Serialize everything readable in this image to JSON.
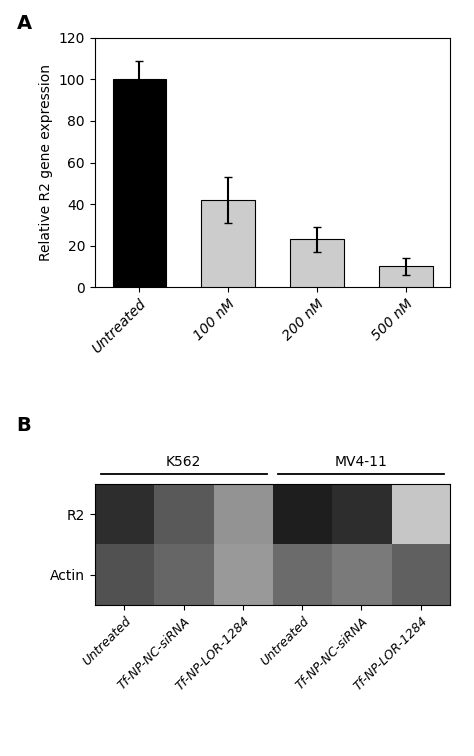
{
  "chart_data": [
    {
      "type": "bar",
      "title": "A",
      "categories": [
        "Untreated",
        "100 nM",
        "200 nM",
        "500 nM"
      ],
      "values": [
        100,
        42,
        23,
        10
      ],
      "errors": [
        9,
        11,
        6,
        4
      ],
      "colors": [
        "#000000",
        "#cccccc",
        "#cccccc",
        "#cccccc"
      ],
      "ylabel": "Relative R2 gene expression",
      "ylim": [
        0,
        120
      ],
      "yticks": [
        0,
        20,
        40,
        60,
        80,
        100,
        120
      ],
      "grid": false
    },
    {
      "type": "heatmap",
      "title": "B",
      "categories": [
        "Untreated",
        "Tf-NP-NC-siRNA",
        "Tf-NP-LOR-1284",
        "Untreated",
        "Tf-NP-NC-siRNA",
        "Tf-NP-LOR-1284"
      ],
      "rows": [
        "R2",
        "Actin"
      ],
      "cells": [
        [
          0.18,
          0.35,
          0.58,
          0.12,
          0.18,
          0.78
        ],
        [
          0.32,
          0.4,
          0.6,
          0.42,
          0.48,
          0.38
        ]
      ],
      "groups": [
        {
          "name": "K562",
          "start": 0,
          "end": 2
        },
        {
          "name": "MV4-11",
          "start": 3,
          "end": 5
        }
      ],
      "grid": false
    }
  ]
}
